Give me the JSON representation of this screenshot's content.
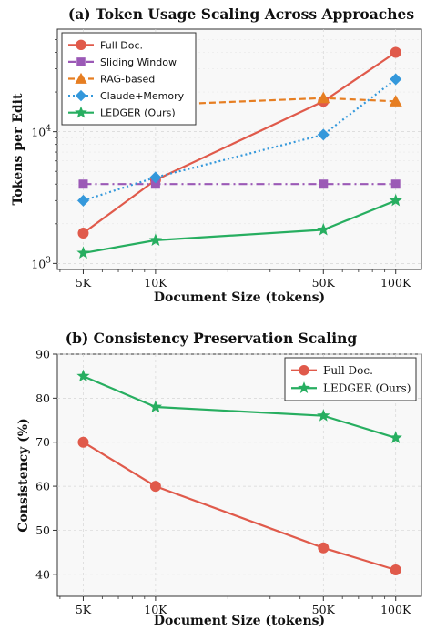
{
  "chart_data": [
    {
      "type": "line",
      "title": "(a) Token Usage Scaling Across Approaches",
      "xlabel": "Document Size (tokens)",
      "ylabel": "Tokens per Edit",
      "x": [
        5000,
        10000,
        50000,
        100000
      ],
      "xticklabels": [
        "5K",
        "10K",
        "50K",
        "100K"
      ],
      "xscale": "log",
      "yscale": "log",
      "ylim": [
        900,
        60000
      ],
      "yticklabels": [
        "10^3",
        "10^4"
      ],
      "grid": true,
      "legend": "top-left",
      "series": [
        {
          "name": "Full Doc.",
          "values": [
            1700,
            4300,
            17000,
            40000
          ],
          "color": "#e05a4b",
          "marker": "circle",
          "linestyle": "solid"
        },
        {
          "name": "Sliding Window",
          "values": [
            4000,
            4000,
            4000,
            4000
          ],
          "color": "#9b59b6",
          "marker": "square",
          "linestyle": "dashdot"
        },
        {
          "name": "RAG-based",
          "values": [
            null,
            16000,
            18000,
            17000
          ],
          "color": "#e67e22",
          "marker": "triangle",
          "linestyle": "dashed"
        },
        {
          "name": "Claude+Memory",
          "values": [
            3000,
            4500,
            9500,
            25000
          ],
          "color": "#3498db",
          "marker": "diamond",
          "linestyle": "dotted"
        },
        {
          "name": "LEDGER (Ours)",
          "values": [
            1200,
            1500,
            1800,
            3000
          ],
          "color": "#27ae60",
          "marker": "star",
          "linestyle": "solid"
        }
      ]
    },
    {
      "type": "line",
      "title": "(b) Consistency Preservation Scaling",
      "xlabel": "Document Size (tokens)",
      "ylabel": "Consistency (%)",
      "x": [
        5000,
        10000,
        50000,
        100000
      ],
      "xticklabels": [
        "5K",
        "10K",
        "50K",
        "100K"
      ],
      "xscale": "log",
      "ylim": [
        35,
        90
      ],
      "yticks": [
        40,
        50,
        60,
        70,
        80,
        90
      ],
      "grid": true,
      "legend": "top-right",
      "series": [
        {
          "name": "Full Doc.",
          "values": [
            70,
            60,
            46,
            41
          ],
          "color": "#e05a4b",
          "marker": "circle",
          "linestyle": "solid"
        },
        {
          "name": "LEDGER (Ours)",
          "values": [
            85,
            78,
            76,
            71
          ],
          "color": "#27ae60",
          "marker": "star",
          "linestyle": "solid"
        }
      ]
    }
  ]
}
